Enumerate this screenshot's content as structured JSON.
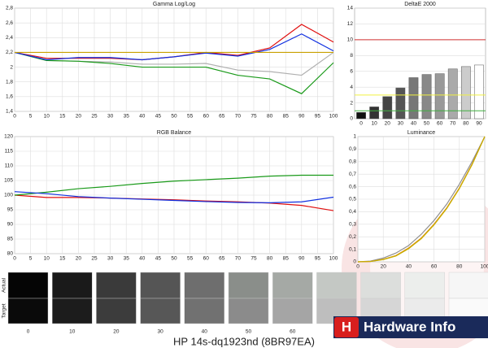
{
  "chart_data": [
    {
      "type": "line",
      "title": "Gamma Log/Log",
      "x": [
        0,
        10,
        20,
        30,
        40,
        50,
        60,
        70,
        80,
        90,
        100
      ],
      "xlim": [
        0,
        100
      ],
      "xticks": [
        0,
        5,
        10,
        15,
        20,
        25,
        30,
        35,
        40,
        45,
        50,
        55,
        60,
        65,
        70,
        75,
        80,
        85,
        90,
        95,
        100
      ],
      "ylim": [
        1.4,
        2.8
      ],
      "yticks": [
        {
          "value": 1.4,
          "label": "1,4"
        },
        {
          "value": 1.6,
          "label": "1,6"
        },
        {
          "value": 1.8,
          "label": "1,8"
        },
        2,
        {
          "value": 2.2,
          "label": "2,2"
        },
        {
          "value": 2.4,
          "label": "2,4"
        },
        {
          "value": 2.6,
          "label": "2,6"
        },
        {
          "value": 2.8,
          "label": "2,8"
        }
      ],
      "grid": true,
      "series": [
        {
          "color": "#b0b0b0",
          "values": [
            2.2,
            2.09,
            2.08,
            2.07,
            2.04,
            2.04,
            2.05,
            1.96,
            1.94,
            1.89,
            2.2
          ]
        },
        {
          "color": "#1a9a1a",
          "values": [
            2.2,
            2.09,
            2.08,
            2.05,
            2.0,
            2.0,
            2.0,
            1.89,
            1.84,
            1.64,
            2.06
          ]
        },
        {
          "color": "#e01010",
          "values": [
            2.2,
            2.12,
            2.12,
            2.12,
            2.1,
            2.14,
            2.2,
            2.16,
            2.26,
            2.58,
            2.34
          ]
        },
        {
          "color": "#1030e0",
          "values": [
            2.2,
            2.1,
            2.13,
            2.13,
            2.1,
            2.14,
            2.19,
            2.15,
            2.24,
            2.45,
            2.22
          ]
        },
        {
          "color": "#c8a000",
          "values": [
            2.2,
            2.2,
            2.2,
            2.2,
            2.2,
            2.2,
            2.2,
            2.2,
            2.2,
            2.2,
            2.2
          ]
        }
      ]
    },
    {
      "type": "bar",
      "title": "DeltaE 2000",
      "categories": [
        0,
        10,
        20,
        30,
        40,
        50,
        60,
        70,
        80,
        90
      ],
      "values": [
        0.8,
        1.5,
        2.8,
        3.9,
        5.2,
        5.6,
        5.7,
        6.3,
        6.6,
        6.8
      ],
      "colors": [
        "#111111",
        "#333333",
        "#444444",
        "#555555",
        "#777777",
        "#888888",
        "#999999",
        "#aaaaaa",
        "#cccccc",
        "#ffffff"
      ],
      "ylim": [
        0,
        14
      ],
      "yticks": [
        0,
        2,
        4,
        6,
        8,
        10,
        12,
        14
      ],
      "grid": true,
      "reference_lines": [
        {
          "value": 10,
          "color": "#d03030"
        },
        {
          "value": 3,
          "color": "#f0f040"
        },
        {
          "value": 1,
          "color": "#40b040"
        }
      ]
    },
    {
      "type": "line",
      "title": "RGB Balance",
      "x": [
        0,
        10,
        20,
        30,
        40,
        50,
        60,
        70,
        80,
        90,
        100
      ],
      "xlim": [
        0,
        100
      ],
      "xticks": [
        0,
        5,
        10,
        15,
        20,
        25,
        30,
        35,
        40,
        45,
        50,
        55,
        60,
        65,
        70,
        75,
        80,
        85,
        90,
        95,
        100
      ],
      "ylim": [
        80,
        120
      ],
      "yticks": [
        80,
        85,
        90,
        95,
        100,
        105,
        110,
        115,
        120
      ],
      "grid": true,
      "series": [
        {
          "color": "#e01010",
          "values": [
            100,
            99.2,
            99.2,
            99,
            98.7,
            98.4,
            98,
            97.7,
            97.3,
            96.5,
            94.7
          ]
        },
        {
          "color": "#1a9a1a",
          "values": [
            100,
            101,
            102.2,
            103,
            104,
            104.8,
            105.3,
            105.8,
            106.5,
            106.8,
            106.8
          ]
        },
        {
          "color": "#1030e0",
          "values": [
            101.2,
            100.5,
            99.5,
            99,
            98.6,
            98.2,
            97.8,
            97.5,
            97.4,
            97.7,
            99.3
          ]
        }
      ]
    },
    {
      "type": "line",
      "title": "Luminance",
      "x": [
        0,
        10,
        20,
        30,
        40,
        50,
        60,
        70,
        80,
        90,
        100
      ],
      "xlim": [
        0,
        100
      ],
      "xticks": [
        0,
        20,
        40,
        60,
        80,
        100
      ],
      "ylim": [
        0,
        1
      ],
      "yticks": [
        0,
        {
          "value": 0.1,
          "label": "0,1"
        },
        {
          "value": 0.2,
          "label": "0,2"
        },
        {
          "value": 0.3,
          "label": "0,3"
        },
        {
          "value": 0.4,
          "label": "0,4"
        },
        {
          "value": 0.5,
          "label": "0,5"
        },
        {
          "value": 0.6,
          "label": "0,6"
        },
        {
          "value": 0.7,
          "label": "0,7"
        },
        {
          "value": 0.8,
          "label": "0,8"
        },
        {
          "value": 0.9,
          "label": "0,9"
        },
        1
      ],
      "grid": true,
      "series": [
        {
          "color": "#909090",
          "values": [
            0,
            0.006,
            0.03,
            0.07,
            0.13,
            0.22,
            0.33,
            0.46,
            0.62,
            0.8,
            1
          ]
        },
        {
          "color": "#e08000",
          "values": [
            0,
            0.003,
            0.02,
            0.05,
            0.11,
            0.19,
            0.3,
            0.43,
            0.59,
            0.78,
            1
          ]
        },
        {
          "color": "#c8b000",
          "values": [
            0,
            0.003,
            0.018,
            0.047,
            0.105,
            0.185,
            0.295,
            0.425,
            0.585,
            0.775,
            1
          ]
        }
      ]
    }
  ],
  "swatches": {
    "row_labels": [
      "Actual",
      "Target"
    ],
    "labels": [
      0,
      10,
      20,
      30,
      40,
      50,
      60,
      null,
      null,
      null,
      null
    ],
    "actual_colors": [
      "#050505",
      "#1a1a1a",
      "#3a3a3a",
      "#555555",
      "#6e6e6e",
      "#8a8e8a",
      "#a5a9a5",
      "#c4c8c4",
      "#dcdedc",
      "#eceeec",
      "#f6f6f6"
    ],
    "target_colors": [
      "#0a0a0a",
      "#1c1c1c",
      "#3c3c3c",
      "#575757",
      "#717171",
      "#8b8b8b",
      "#a5a5a5",
      "#bebebe",
      "#d6d6d6",
      "#ebebeb",
      "#fafafa"
    ]
  },
  "title": "HP 14s-dq1923nd (8BR97EA)",
  "logo": {
    "mark": "H",
    "text": "Hardware Info"
  }
}
